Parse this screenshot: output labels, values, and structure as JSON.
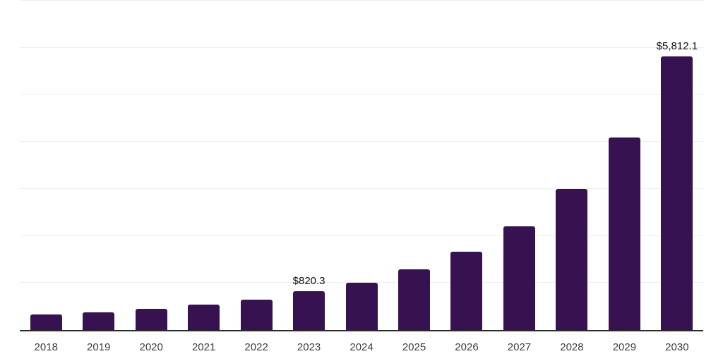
{
  "chart_data": {
    "type": "bar",
    "title": "",
    "xlabel": "",
    "ylabel": "",
    "categories": [
      "2018",
      "2019",
      "2020",
      "2021",
      "2022",
      "2023",
      "2024",
      "2025",
      "2026",
      "2027",
      "2028",
      "2029",
      "2030"
    ],
    "values": [
      330,
      375,
      450,
      540,
      645,
      820.3,
      1000,
      1290,
      1660,
      2200,
      3000,
      4100,
      5812.1
    ],
    "value_labels": [
      {
        "category": "2023",
        "text": "$820.3"
      },
      {
        "category": "2030",
        "text": "$5,812.1"
      }
    ],
    "ylim": [
      0,
      7000
    ],
    "gridline_step": 1000,
    "grid": "horizontal",
    "legend": "none",
    "colors": {
      "bar": "#371250",
      "axis_line": "#2b2b2b",
      "gridline": "#ededee",
      "tick_label": "#3d3d3d",
      "value_label": "#101010",
      "background": "#ffffff"
    }
  }
}
